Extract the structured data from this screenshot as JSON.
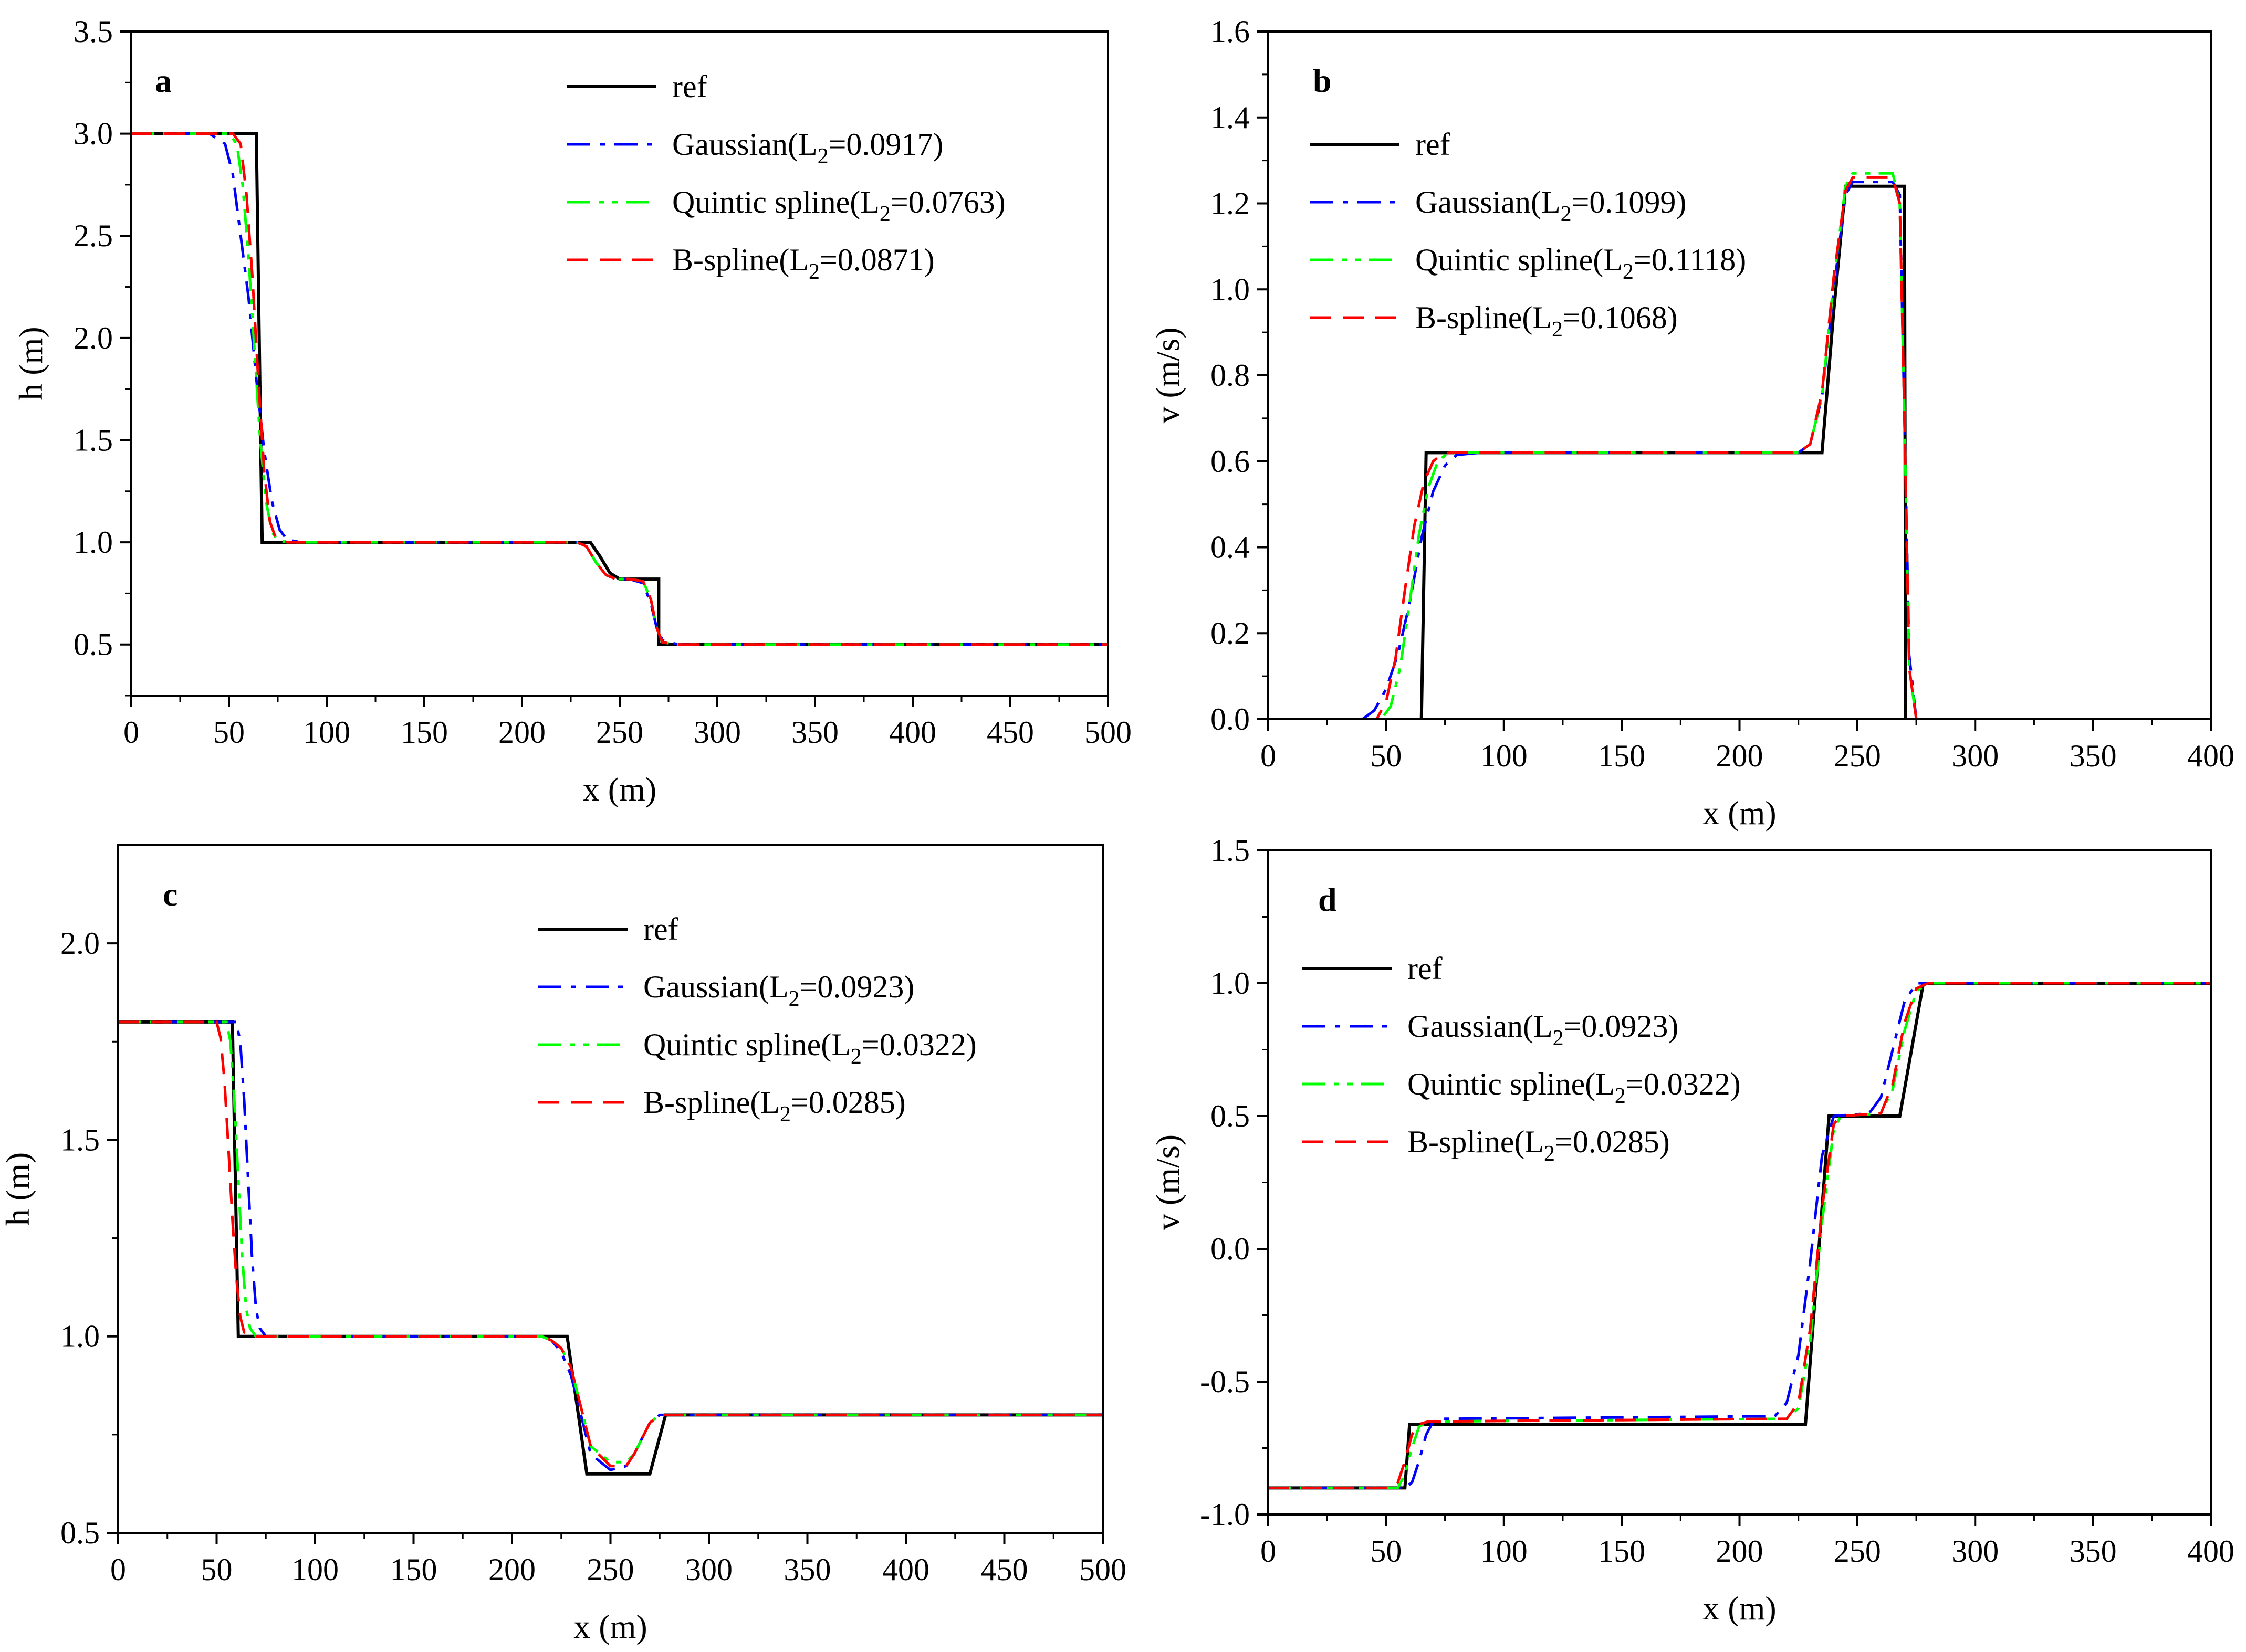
{
  "figure_title": "",
  "chart_data": [
    {
      "panel": "a",
      "type": "line",
      "xlabel": "x (m)",
      "ylabel": "h (m)",
      "xlim": [
        0,
        500
      ],
      "ylim": [
        0.25,
        3.5
      ],
      "xticks": [
        0,
        50,
        100,
        150,
        200,
        250,
        300,
        350,
        400,
        450,
        500
      ],
      "yticks": [
        0.5,
        1.0,
        1.5,
        2.0,
        2.5,
        3.0,
        3.5
      ],
      "ytick_labels": [
        "0.5",
        "1.0",
        "1.5",
        "2.0",
        "2.5",
        "3.0",
        "3.5"
      ],
      "legend_position": "top-right",
      "legend": [
        {
          "label": "ref",
          "sub": "",
          "tail": ""
        },
        {
          "label": "Gaussian(L",
          "sub": "2",
          "tail": "=0.0917)"
        },
        {
          "label": "Quintic spline(L",
          "sub": "2",
          "tail": "=0.0763)"
        },
        {
          "label": "B-spline(L",
          "sub": "2",
          "tail": "=0.0871)"
        }
      ],
      "series": [
        {
          "name": "ref",
          "color": "#000000",
          "dash": "solid",
          "x": [
            0,
            64,
            64,
            67,
            67,
            235,
            240,
            245,
            250,
            255,
            260,
            270,
            270,
            500
          ],
          "y": [
            3.0,
            3.0,
            3.0,
            1.0,
            1.0,
            1.0,
            0.93,
            0.85,
            0.82,
            0.82,
            0.82,
            0.82,
            0.5,
            0.5
          ]
        },
        {
          "name": "Gaussian(L2=0.0917)",
          "color": "#0000ff",
          "dash": "dashdot",
          "x": [
            0,
            40,
            48,
            52,
            56,
            60,
            64,
            68,
            72,
            76,
            80,
            90,
            228,
            233,
            238,
            243,
            248,
            255,
            262,
            266,
            269,
            272,
            280,
            500
          ],
          "y": [
            3.0,
            3.0,
            2.95,
            2.8,
            2.5,
            2.2,
            1.8,
            1.45,
            1.2,
            1.06,
            1.01,
            1.0,
            1.0,
            0.98,
            0.9,
            0.84,
            0.82,
            0.82,
            0.8,
            0.7,
            0.58,
            0.52,
            0.5,
            0.5
          ]
        },
        {
          "name": "Quintic spline(L2=0.0763)",
          "color": "#00ff00",
          "dash": "dashdotdot",
          "x": [
            0,
            50,
            54,
            57,
            60,
            63,
            66,
            69,
            72,
            75,
            80,
            228,
            233,
            238,
            243,
            248,
            255,
            262,
            266,
            269,
            272,
            280,
            500
          ],
          "y": [
            3.0,
            3.0,
            2.95,
            2.75,
            2.4,
            1.95,
            1.5,
            1.2,
            1.05,
            1.01,
            1.0,
            1.0,
            0.98,
            0.9,
            0.84,
            0.82,
            0.82,
            0.81,
            0.72,
            0.58,
            0.51,
            0.5,
            0.5
          ]
        },
        {
          "name": "B-spline(L2=0.0871)",
          "color": "#ff0000",
          "dash": "dash",
          "x": [
            0,
            52,
            56,
            59,
            62,
            65,
            68,
            71,
            74,
            80,
            228,
            233,
            238,
            243,
            248,
            255,
            262,
            266,
            269,
            272,
            280,
            500
          ],
          "y": [
            3.0,
            3.0,
            2.95,
            2.7,
            2.3,
            1.8,
            1.35,
            1.1,
            1.02,
            1.0,
            1.0,
            0.98,
            0.9,
            0.84,
            0.82,
            0.82,
            0.81,
            0.72,
            0.58,
            0.51,
            0.5,
            0.5
          ]
        }
      ]
    },
    {
      "panel": "b",
      "type": "line",
      "xlabel": "x (m)",
      "ylabel": "v (m/s)",
      "xlim": [
        0,
        400
      ],
      "ylim": [
        0,
        1.6
      ],
      "xticks": [
        0,
        50,
        100,
        150,
        200,
        250,
        300,
        350,
        400
      ],
      "yticks": [
        0.0,
        0.2,
        0.4,
        0.6,
        0.8,
        1.0,
        1.2,
        1.4,
        1.6
      ],
      "ytick_labels": [
        "0.0",
        "0.2",
        "0.4",
        "0.6",
        "0.8",
        "1.0",
        "1.2",
        "1.4",
        "1.6"
      ],
      "legend_position": "top-left",
      "legend": [
        {
          "label": "ref",
          "sub": "",
          "tail": ""
        },
        {
          "label": "Gaussian(L",
          "sub": "2",
          "tail": "=0.1099)"
        },
        {
          "label": "Quintic spline(L",
          "sub": "2",
          "tail": "=0.1118)"
        },
        {
          "label": "B-spline(L",
          "sub": "2",
          "tail": "=0.1068)"
        }
      ],
      "series": [
        {
          "name": "ref",
          "color": "#000000",
          "dash": "solid",
          "x": [
            0,
            65,
            67,
            235,
            240,
            245,
            270,
            270.5,
            400
          ],
          "y": [
            0.0,
            0.0,
            0.62,
            0.62,
            0.95,
            1.24,
            1.24,
            0.0,
            0.0
          ]
        },
        {
          "name": "Gaussian(L2=0.1099)",
          "color": "#0000ff",
          "dash": "dashdot",
          "x": [
            0,
            40,
            45,
            50,
            55,
            60,
            65,
            70,
            75,
            80,
            90,
            225,
            230,
            235,
            240,
            245,
            248,
            265,
            268,
            270,
            272,
            275,
            400
          ],
          "y": [
            0.0,
            0.0,
            0.02,
            0.07,
            0.15,
            0.27,
            0.42,
            0.53,
            0.59,
            0.615,
            0.62,
            0.62,
            0.64,
            0.75,
            1.0,
            1.22,
            1.25,
            1.25,
            1.22,
            0.7,
            0.15,
            0.0,
            0.0
          ]
        },
        {
          "name": "Quintic spline(L2=0.1118)",
          "color": "#00ff00",
          "dash": "dashdotdot",
          "x": [
            0,
            48,
            52,
            56,
            60,
            64,
            68,
            72,
            76,
            80,
            225,
            230,
            235,
            240,
            245,
            248,
            265,
            268,
            270,
            272,
            275,
            400
          ],
          "y": [
            0.0,
            0.0,
            0.03,
            0.12,
            0.27,
            0.43,
            0.54,
            0.6,
            0.618,
            0.62,
            0.62,
            0.64,
            0.75,
            1.02,
            1.24,
            1.27,
            1.27,
            1.2,
            0.7,
            0.12,
            0.0,
            0.0
          ]
        },
        {
          "name": "B-spline(L2=0.1068)",
          "color": "#ff0000",
          "dash": "dash",
          "x": [
            0,
            46,
            50,
            54,
            58,
            62,
            66,
            70,
            74,
            78,
            225,
            230,
            235,
            240,
            245,
            248,
            265,
            268,
            270,
            272,
            275,
            400
          ],
          "y": [
            0.0,
            0.0,
            0.04,
            0.14,
            0.3,
            0.45,
            0.55,
            0.6,
            0.618,
            0.62,
            0.62,
            0.64,
            0.76,
            1.03,
            1.23,
            1.26,
            1.26,
            1.2,
            0.7,
            0.12,
            0.0,
            0.0
          ]
        }
      ]
    },
    {
      "panel": "c",
      "type": "line",
      "xlabel": "x (m)",
      "ylabel": "h (m)",
      "xlim": [
        0,
        500
      ],
      "ylim": [
        0.5,
        2.25
      ],
      "xticks": [
        0,
        50,
        100,
        150,
        200,
        250,
        300,
        350,
        400,
        450,
        500
      ],
      "yticks": [
        0.5,
        1.0,
        1.5,
        2.0
      ],
      "ytick_labels": [
        "0.5",
        "1.0",
        "1.5",
        "2.0"
      ],
      "legend_position": "top-right",
      "legend": [
        {
          "label": "ref",
          "sub": "",
          "tail": ""
        },
        {
          "label": "Gaussian(L",
          "sub": "2",
          "tail": "=0.0923)"
        },
        {
          "label": "Quintic spline(L",
          "sub": "2",
          "tail": "=0.0322)"
        },
        {
          "label": "B-spline(L",
          "sub": "2",
          "tail": "=0.0285)"
        }
      ],
      "series": [
        {
          "name": "ref",
          "color": "#000000",
          "dash": "solid",
          "x": [
            0,
            58,
            61,
            228,
            238,
            270,
            278,
            500
          ],
          "y": [
            1.8,
            1.8,
            1.0,
            1.0,
            0.65,
            0.65,
            0.8,
            0.8
          ]
        },
        {
          "name": "Gaussian(L2=0.0923)",
          "color": "#0000ff",
          "dash": "dashdot",
          "x": [
            0,
            60,
            62,
            64,
            66,
            68,
            70,
            72,
            75,
            215,
            220,
            225,
            230,
            235,
            240,
            250,
            258,
            262,
            266,
            270,
            275,
            280,
            500
          ],
          "y": [
            1.8,
            1.8,
            1.75,
            1.6,
            1.4,
            1.2,
            1.07,
            1.02,
            1.0,
            1.0,
            0.99,
            0.96,
            0.9,
            0.8,
            0.7,
            0.66,
            0.67,
            0.7,
            0.74,
            0.78,
            0.8,
            0.8,
            0.8
          ]
        },
        {
          "name": "Quintic spline(L2=0.0322)",
          "color": "#00ff00",
          "dash": "dashdotdot",
          "x": [
            0,
            55,
            57,
            59,
            61,
            63,
            65,
            67,
            70,
            215,
            220,
            225,
            230,
            235,
            240,
            250,
            258,
            262,
            266,
            270,
            275,
            280,
            500
          ],
          "y": [
            1.8,
            1.8,
            1.75,
            1.6,
            1.4,
            1.2,
            1.07,
            1.02,
            1.0,
            1.0,
            0.99,
            0.97,
            0.92,
            0.82,
            0.72,
            0.68,
            0.68,
            0.7,
            0.74,
            0.78,
            0.8,
            0.8,
            0.8
          ]
        },
        {
          "name": "B-spline(L2=0.0285)",
          "color": "#ff0000",
          "dash": "dash",
          "x": [
            0,
            50,
            52,
            54,
            56,
            58,
            60,
            62,
            64,
            67,
            215,
            220,
            225,
            230,
            235,
            240,
            250,
            258,
            262,
            266,
            270,
            275,
            280,
            500
          ],
          "y": [
            1.8,
            1.8,
            1.76,
            1.65,
            1.48,
            1.3,
            1.15,
            1.05,
            1.01,
            1.0,
            1.0,
            0.99,
            0.97,
            0.92,
            0.82,
            0.72,
            0.67,
            0.67,
            0.7,
            0.74,
            0.78,
            0.8,
            0.8,
            0.8
          ]
        }
      ]
    },
    {
      "panel": "d",
      "type": "line",
      "xlabel": "x (m)",
      "ylabel": "v (m/s)",
      "xlim": [
        0,
        400
      ],
      "ylim": [
        -1.0,
        1.5
      ],
      "xticks": [
        0,
        50,
        100,
        150,
        200,
        250,
        300,
        350,
        400
      ],
      "yticks": [
        -1.0,
        -0.5,
        0.0,
        0.5,
        1.0,
        1.5
      ],
      "ytick_labels": [
        "-1.0",
        "-0.5",
        "0.0",
        "0.5",
        "1.0",
        "1.5"
      ],
      "legend_position": "top-left",
      "legend": [
        {
          "label": "ref",
          "sub": "",
          "tail": ""
        },
        {
          "label": "Gaussian(L",
          "sub": "2",
          "tail": "=0.0923)"
        },
        {
          "label": "Quintic spline(L",
          "sub": "2",
          "tail": "=0.0322)"
        },
        {
          "label": "B-spline(L",
          "sub": "2",
          "tail": "=0.0285)"
        }
      ],
      "series": [
        {
          "name": "ref",
          "color": "#000000",
          "dash": "solid",
          "x": [
            0,
            58,
            60,
            228,
            238,
            268,
            278,
            400
          ],
          "y": [
            -0.9,
            -0.9,
            -0.66,
            -0.66,
            0.5,
            0.5,
            1.0,
            1.0
          ]
        },
        {
          "name": "Gaussian(L2=0.0923)",
          "color": "#0000ff",
          "dash": "dashdot",
          "x": [
            0,
            58,
            61,
            64,
            67,
            70,
            75,
            215,
            220,
            225,
            230,
            235,
            240,
            255,
            260,
            265,
            270,
            275,
            400
          ],
          "y": [
            -0.9,
            -0.9,
            -0.88,
            -0.8,
            -0.7,
            -0.65,
            -0.64,
            -0.63,
            -0.58,
            -0.4,
            -0.05,
            0.35,
            0.5,
            0.51,
            0.57,
            0.75,
            0.93,
            1.0,
            1.0
          ]
        },
        {
          "name": "Quintic spline(L2=0.0322)",
          "color": "#00ff00",
          "dash": "dashdotdot",
          "x": [
            0,
            55,
            58,
            61,
            64,
            68,
            220,
            225,
            230,
            235,
            240,
            243,
            260,
            265,
            270,
            275,
            280,
            400
          ],
          "y": [
            -0.9,
            -0.9,
            -0.85,
            -0.75,
            -0.67,
            -0.65,
            -0.64,
            -0.6,
            -0.35,
            0.1,
            0.45,
            0.5,
            0.51,
            0.6,
            0.82,
            0.97,
            1.0,
            1.0
          ]
        },
        {
          "name": "B-spline(L2=0.0285)",
          "color": "#ff0000",
          "dash": "dash",
          "x": [
            0,
            52,
            55,
            58,
            61,
            64,
            68,
            220,
            225,
            230,
            235,
            240,
            243,
            260,
            265,
            270,
            275,
            280,
            400
          ],
          "y": [
            -0.9,
            -0.9,
            -0.88,
            -0.8,
            -0.7,
            -0.66,
            -0.65,
            -0.64,
            -0.58,
            -0.3,
            0.15,
            0.47,
            0.5,
            0.51,
            0.62,
            0.85,
            0.98,
            1.0,
            1.0
          ]
        }
      ]
    }
  ]
}
